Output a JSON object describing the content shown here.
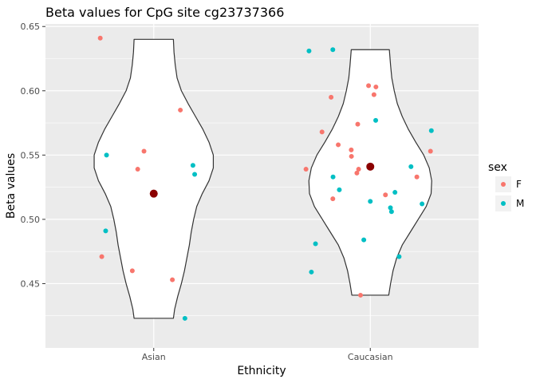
{
  "chart_data": {
    "type": "violin",
    "title": "Beta values for CpG site cg23737366",
    "xlabel": "Ethnicity",
    "ylabel": "Beta values",
    "categories": [
      "Asian",
      "Caucasian"
    ],
    "ylim": [
      0.4,
      0.652
    ],
    "yticks": [
      0.45,
      0.5,
      0.55,
      0.6,
      0.65
    ],
    "ytick_labels": [
      "0.45",
      "0.50",
      "0.55",
      "0.60",
      "0.65"
    ],
    "grid": true,
    "legend": {
      "title": "sex",
      "position": "right",
      "entries": [
        {
          "label": "F",
          "color": "#f8766d"
        },
        {
          "label": "M",
          "color": "#00bfc4"
        }
      ]
    },
    "colors": {
      "F": "#f8766d",
      "M": "#00bfc4",
      "mean": "#8b0000",
      "panel": "#ebebeb",
      "outline": "#333333"
    },
    "violins": [
      {
        "category": "Asian",
        "range": [
          0.423,
          0.64
        ],
        "profile": [
          [
            0.423,
            0.32
          ],
          [
            0.43,
            0.34
          ],
          [
            0.44,
            0.39
          ],
          [
            0.45,
            0.45
          ],
          [
            0.46,
            0.5
          ],
          [
            0.47,
            0.54
          ],
          [
            0.48,
            0.58
          ],
          [
            0.49,
            0.61
          ],
          [
            0.5,
            0.65
          ],
          [
            0.51,
            0.7
          ],
          [
            0.52,
            0.79
          ],
          [
            0.53,
            0.9
          ],
          [
            0.54,
            0.97
          ],
          [
            0.55,
            0.97
          ],
          [
            0.56,
            0.9
          ],
          [
            0.57,
            0.8
          ],
          [
            0.58,
            0.68
          ],
          [
            0.59,
            0.56
          ],
          [
            0.6,
            0.45
          ],
          [
            0.61,
            0.38
          ],
          [
            0.62,
            0.35
          ],
          [
            0.63,
            0.33
          ],
          [
            0.64,
            0.32
          ]
        ],
        "mean": 0.52
      },
      {
        "category": "Caucasian",
        "range": [
          0.441,
          0.632
        ],
        "profile": [
          [
            0.441,
            0.3
          ],
          [
            0.45,
            0.33
          ],
          [
            0.46,
            0.37
          ],
          [
            0.47,
            0.43
          ],
          [
            0.48,
            0.52
          ],
          [
            0.49,
            0.65
          ],
          [
            0.5,
            0.78
          ],
          [
            0.51,
            0.91
          ],
          [
            0.52,
            0.99
          ],
          [
            0.53,
            1.0
          ],
          [
            0.54,
            0.96
          ],
          [
            0.55,
            0.87
          ],
          [
            0.56,
            0.74
          ],
          [
            0.57,
            0.62
          ],
          [
            0.58,
            0.52
          ],
          [
            0.59,
            0.44
          ],
          [
            0.6,
            0.39
          ],
          [
            0.61,
            0.35
          ],
          [
            0.62,
            0.33
          ],
          [
            0.632,
            0.31
          ]
        ],
        "mean": 0.541
      }
    ],
    "points": [
      {
        "category": "Asian",
        "jitter": -0.247,
        "y": 0.641,
        "sex": "F"
      },
      {
        "category": "Asian",
        "jitter": 0.123,
        "y": 0.585,
        "sex": "F"
      },
      {
        "category": "Asian",
        "jitter": -0.045,
        "y": 0.553,
        "sex": "F"
      },
      {
        "category": "Asian",
        "jitter": -0.218,
        "y": 0.55,
        "sex": "M"
      },
      {
        "category": "Asian",
        "jitter": 0.181,
        "y": 0.542,
        "sex": "M"
      },
      {
        "category": "Asian",
        "jitter": -0.074,
        "y": 0.539,
        "sex": "F"
      },
      {
        "category": "Asian",
        "jitter": 0.189,
        "y": 0.535,
        "sex": "M"
      },
      {
        "category": "Asian",
        "jitter": -0.222,
        "y": 0.491,
        "sex": "M"
      },
      {
        "category": "Asian",
        "jitter": -0.24,
        "y": 0.471,
        "sex": "F"
      },
      {
        "category": "Asian",
        "jitter": -0.099,
        "y": 0.46,
        "sex": "F"
      },
      {
        "category": "Asian",
        "jitter": 0.086,
        "y": 0.453,
        "sex": "F"
      },
      {
        "category": "Asian",
        "jitter": 0.144,
        "y": 0.423,
        "sex": "M"
      },
      {
        "category": "Caucasian",
        "jitter": -0.283,
        "y": 0.631,
        "sex": "M"
      },
      {
        "category": "Caucasian",
        "jitter": -0.173,
        "y": 0.632,
        "sex": "M"
      },
      {
        "category": "Caucasian",
        "jitter": -0.008,
        "y": 0.604,
        "sex": "F"
      },
      {
        "category": "Caucasian",
        "jitter": 0.026,
        "y": 0.603,
        "sex": "F"
      },
      {
        "category": "Caucasian",
        "jitter": 0.017,
        "y": 0.597,
        "sex": "F"
      },
      {
        "category": "Caucasian",
        "jitter": -0.181,
        "y": 0.595,
        "sex": "F"
      },
      {
        "category": "Caucasian",
        "jitter": 0.025,
        "y": 0.577,
        "sex": "M"
      },
      {
        "category": "Caucasian",
        "jitter": -0.058,
        "y": 0.574,
        "sex": "F"
      },
      {
        "category": "Caucasian",
        "jitter": 0.282,
        "y": 0.569,
        "sex": "M"
      },
      {
        "category": "Caucasian",
        "jitter": -0.223,
        "y": 0.568,
        "sex": "F"
      },
      {
        "category": "Caucasian",
        "jitter": -0.148,
        "y": 0.558,
        "sex": "F"
      },
      {
        "category": "Caucasian",
        "jitter": -0.088,
        "y": 0.554,
        "sex": "F"
      },
      {
        "category": "Caucasian",
        "jitter": 0.278,
        "y": 0.553,
        "sex": "F"
      },
      {
        "category": "Caucasian",
        "jitter": -0.087,
        "y": 0.549,
        "sex": "F"
      },
      {
        "category": "Caucasian",
        "jitter": 0.188,
        "y": 0.541,
        "sex": "M"
      },
      {
        "category": "Caucasian",
        "jitter": -0.297,
        "y": 0.539,
        "sex": "F"
      },
      {
        "category": "Caucasian",
        "jitter": -0.054,
        "y": 0.539,
        "sex": "F"
      },
      {
        "category": "Caucasian",
        "jitter": -0.062,
        "y": 0.536,
        "sex": "F"
      },
      {
        "category": "Caucasian",
        "jitter": -0.172,
        "y": 0.533,
        "sex": "M"
      },
      {
        "category": "Caucasian",
        "jitter": 0.215,
        "y": 0.533,
        "sex": "F"
      },
      {
        "category": "Caucasian",
        "jitter": -0.143,
        "y": 0.523,
        "sex": "M"
      },
      {
        "category": "Caucasian",
        "jitter": 0.114,
        "y": 0.521,
        "sex": "M"
      },
      {
        "category": "Caucasian",
        "jitter": 0.07,
        "y": 0.519,
        "sex": "F"
      },
      {
        "category": "Caucasian",
        "jitter": -0.173,
        "y": 0.516,
        "sex": "F"
      },
      {
        "category": "Caucasian",
        "jitter": 0.0,
        "y": 0.514,
        "sex": "M"
      },
      {
        "category": "Caucasian",
        "jitter": 0.239,
        "y": 0.512,
        "sex": "M"
      },
      {
        "category": "Caucasian",
        "jitter": 0.093,
        "y": 0.509,
        "sex": "M"
      },
      {
        "category": "Caucasian",
        "jitter": 0.098,
        "y": 0.506,
        "sex": "M"
      },
      {
        "category": "Caucasian",
        "jitter": -0.03,
        "y": 0.484,
        "sex": "M"
      },
      {
        "category": "Caucasian",
        "jitter": -0.253,
        "y": 0.481,
        "sex": "M"
      },
      {
        "category": "Caucasian",
        "jitter": 0.133,
        "y": 0.471,
        "sex": "M"
      },
      {
        "category": "Caucasian",
        "jitter": -0.272,
        "y": 0.459,
        "sex": "M"
      },
      {
        "category": "Caucasian",
        "jitter": -0.045,
        "y": 0.441,
        "sex": "F"
      }
    ]
  }
}
